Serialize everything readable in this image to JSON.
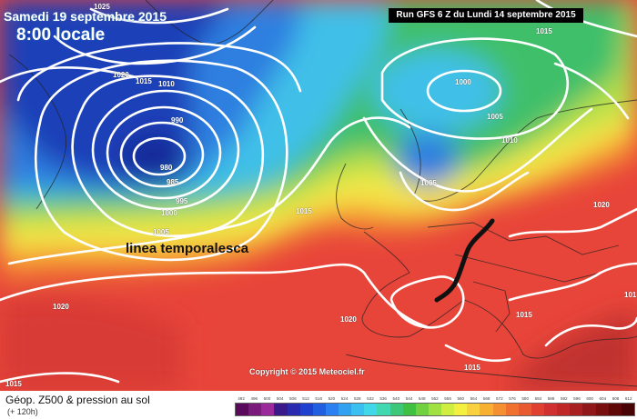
{
  "header": {
    "valid_date": "Samedi 19 septembre 2015",
    "local_time": "8:00 locale",
    "run_info": "Run GFS 6 Z du Lundi 14 septembre 2015"
  },
  "annotation": {
    "label": "linea temporalesca"
  },
  "copyright": "Copyright © 2015 Meteociel.fr",
  "footer": {
    "title": "Géop. Z500 & pression au sol",
    "forecast_hour": "(+ 120h)"
  },
  "isobar_labels": [
    {
      "text": "1025",
      "name": "isobar-label-1025-greenland"
    },
    {
      "text": "1020",
      "name": "isobar-label-1020-northwest"
    },
    {
      "text": "1015",
      "name": "isobar-label-1015-northwest"
    },
    {
      "text": "1010",
      "name": "isobar-label-1010-northwest"
    },
    {
      "text": "990",
      "name": "isobar-label-990"
    },
    {
      "text": "980",
      "name": "isobar-label-980"
    },
    {
      "text": "985",
      "name": "isobar-label-985"
    },
    {
      "text": "995",
      "name": "isobar-label-995"
    },
    {
      "text": "1000",
      "name": "isobar-label-1000-atlantic"
    },
    {
      "text": "1005",
      "name": "isobar-label-1005-atlantic"
    },
    {
      "text": "1000",
      "name": "isobar-label-1000-norway"
    },
    {
      "text": "1005",
      "name": "isobar-label-1005-norway"
    },
    {
      "text": "1010",
      "name": "isobar-label-1010-sweden"
    },
    {
      "text": "1005",
      "name": "isobar-label-1005-north-sea"
    },
    {
      "text": "1015",
      "name": "isobar-label-1015-top-right"
    },
    {
      "text": "1015",
      "name": "isobar-label-1015-biscay"
    },
    {
      "text": "1020",
      "name": "isobar-label-1020-east-europe"
    },
    {
      "text": "1020",
      "name": "isobar-label-1020-azores"
    },
    {
      "text": "1020",
      "name": "isobar-label-1020-iberia"
    },
    {
      "text": "1015",
      "name": "isobar-label-1015-balkans"
    },
    {
      "text": "1015",
      "name": "isobar-label-1015-east"
    },
    {
      "text": "1015",
      "name": "isobar-label-1015-bottom-left"
    },
    {
      "text": "1015",
      "name": "isobar-label-1015-mediterranean"
    }
  ],
  "colors": {
    "deep_blue": "#1a3fb8",
    "blue": "#2f7fe0",
    "cyan": "#3fc0e8",
    "green": "#3fbf6a",
    "yellow_green": "#b8e04a",
    "yellow": "#f4e84a",
    "orange": "#f59a30",
    "red": "#e8453a",
    "dark_red": "#c0302e",
    "isobar": "#ffffff",
    "storm_line": "#111111"
  },
  "scale": {
    "ticks": [
      "492",
      "496",
      "500",
      "504",
      "508",
      "512",
      "516",
      "520",
      "524",
      "528",
      "532",
      "536",
      "540",
      "544",
      "548",
      "552",
      "556",
      "560",
      "564",
      "568",
      "572",
      "576",
      "580",
      "584",
      "588",
      "592",
      "596",
      "600",
      "604",
      "608",
      "612"
    ],
    "colors": [
      "#5a0a5a",
      "#7a1a7a",
      "#9a2a9a",
      "#3a1a8a",
      "#2a2ab0",
      "#2040d0",
      "#2060e0",
      "#2a80f0",
      "#30a0f0",
      "#3ac0f0",
      "#40d8e8",
      "#40d8b0",
      "#3cc878",
      "#40c040",
      "#70d040",
      "#a0e040",
      "#d0ee40",
      "#f4f040",
      "#f8d040",
      "#f8b030",
      "#f59030",
      "#f07030",
      "#e85a30",
      "#e04030",
      "#d03030",
      "#c02828",
      "#a82020",
      "#901818",
      "#781010",
      "#600808",
      "#480404"
    ]
  }
}
